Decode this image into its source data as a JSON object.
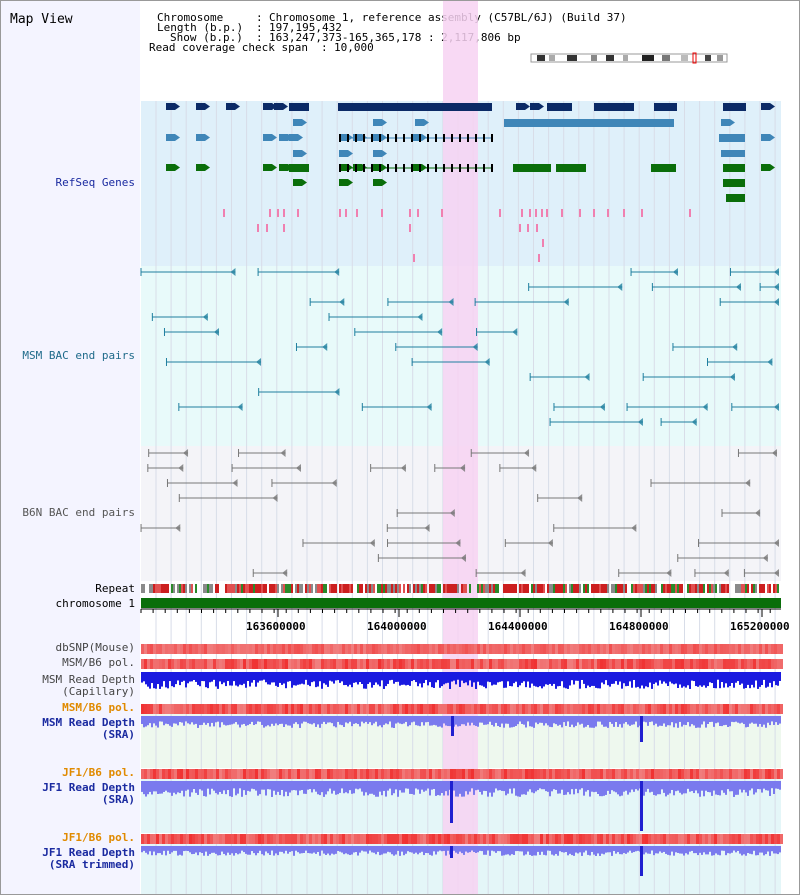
{
  "title": "Map View",
  "info": {
    "chromosome_label": "Chromosome",
    "chromosome_value": "Chromosome 1, reference assembly (C57BL/6J) (Build 37)",
    "length_label": "Length (b.p.)",
    "length_value": "197,195,432",
    "show_label": "Show (b.p.)",
    "show_value": "163,247,373-165,365,178 : 2,117,806 bp",
    "coverage_label": "Read coverage check span",
    "coverage_value": "10,000"
  },
  "tracks": {
    "refseq": "RefSeq Genes",
    "msm_bac": "MSM BAC end pairs",
    "b6n_bac": "B6N BAC end pairs",
    "repeat": "Repeat",
    "chromosome": "chromosome 1",
    "dbsnp": "dbSNP(Mouse)",
    "msm_b6_pol": "MSM/B6 pol.",
    "msm_depth_cap_1": "MSM Read Depth",
    "msm_depth_cap_2": "(Capillary)",
    "msm_b6_pol2": "MSM/B6 pol.",
    "msm_depth_sra_1": "MSM Read Depth",
    "msm_depth_sra_2": "(SRA)",
    "jf1_b6_pol": "JF1/B6 pol.",
    "jf1_depth_sra_1": "JF1 Read Depth",
    "jf1_depth_sra_2": "(SRA)",
    "jf1_b6_pol2": "JF1/B6 pol.",
    "jf1_depth_trim_1": "JF1 Read Depth",
    "jf1_depth_trim_2": "(SRA trimmed)"
  },
  "axis_ticks": [
    "163600000",
    "164000000",
    "164400000",
    "164800000",
    "165200000"
  ],
  "colors": {
    "refseq_bg": "#dff0fa",
    "msm_bg": "#e8fafa",
    "b6n_bg": "#f4f4f8",
    "highlight": "#f7d2f2",
    "gene_dark": "#0b2a66",
    "gene_mid": "#3f86b8",
    "gene_green": "#0a6e0a",
    "msm_bac": "#1f7f9f",
    "b6n_bac": "#777777",
    "msm_depth": "#1a1ae0",
    "sra_depth": "#7a7aee",
    "label_navy": "#1a2aa0",
    "label_teal": "#1e6a8a",
    "label_orange": "#e08a00"
  }
}
